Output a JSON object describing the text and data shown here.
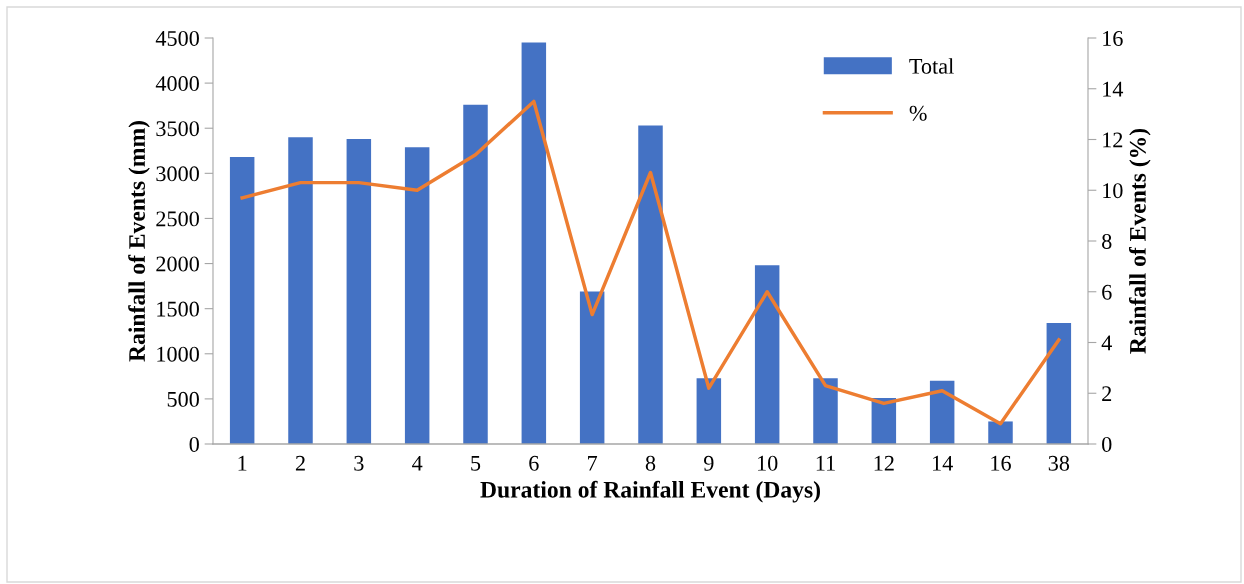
{
  "chart_data": {
    "type": "bar",
    "xlabel": "Duration of Rainfall Event (Days)",
    "ylabel": "Rainfall of Events (mm)",
    "y2label": "Rainfall of Events (%)",
    "categories": [
      "1",
      "2",
      "3",
      "4",
      "5",
      "6",
      "7",
      "8",
      "9",
      "10",
      "11",
      "12",
      "14",
      "16",
      "38"
    ],
    "series": [
      {
        "name": "Total",
        "color": "#4472c4",
        "values": [
          3180,
          3400,
          3380,
          3290,
          3760,
          4450,
          1690,
          3530,
          730,
          1980,
          730,
          510,
          700,
          250,
          1340
        ]
      },
      {
        "name": "%",
        "type": "line",
        "axis": "y2",
        "color": "#ed7d31",
        "values": [
          9.7,
          10.3,
          10.3,
          10.0,
          11.4,
          13.5,
          5.1,
          10.7,
          2.2,
          6.0,
          2.3,
          1.6,
          2.1,
          0.8,
          4.1
        ]
      }
    ],
    "ylim": [
      0,
      4500
    ],
    "yticks": [
      0,
      500,
      1000,
      1500,
      2000,
      2500,
      3000,
      3500,
      4000,
      4500
    ],
    "y2lim": [
      0,
      16
    ],
    "y2ticks": [
      0,
      2,
      4,
      6,
      8,
      10,
      12,
      14,
      16
    ],
    "legend": "top right",
    "grid": false,
    "marker": "none",
    "line_style": "solid"
  }
}
